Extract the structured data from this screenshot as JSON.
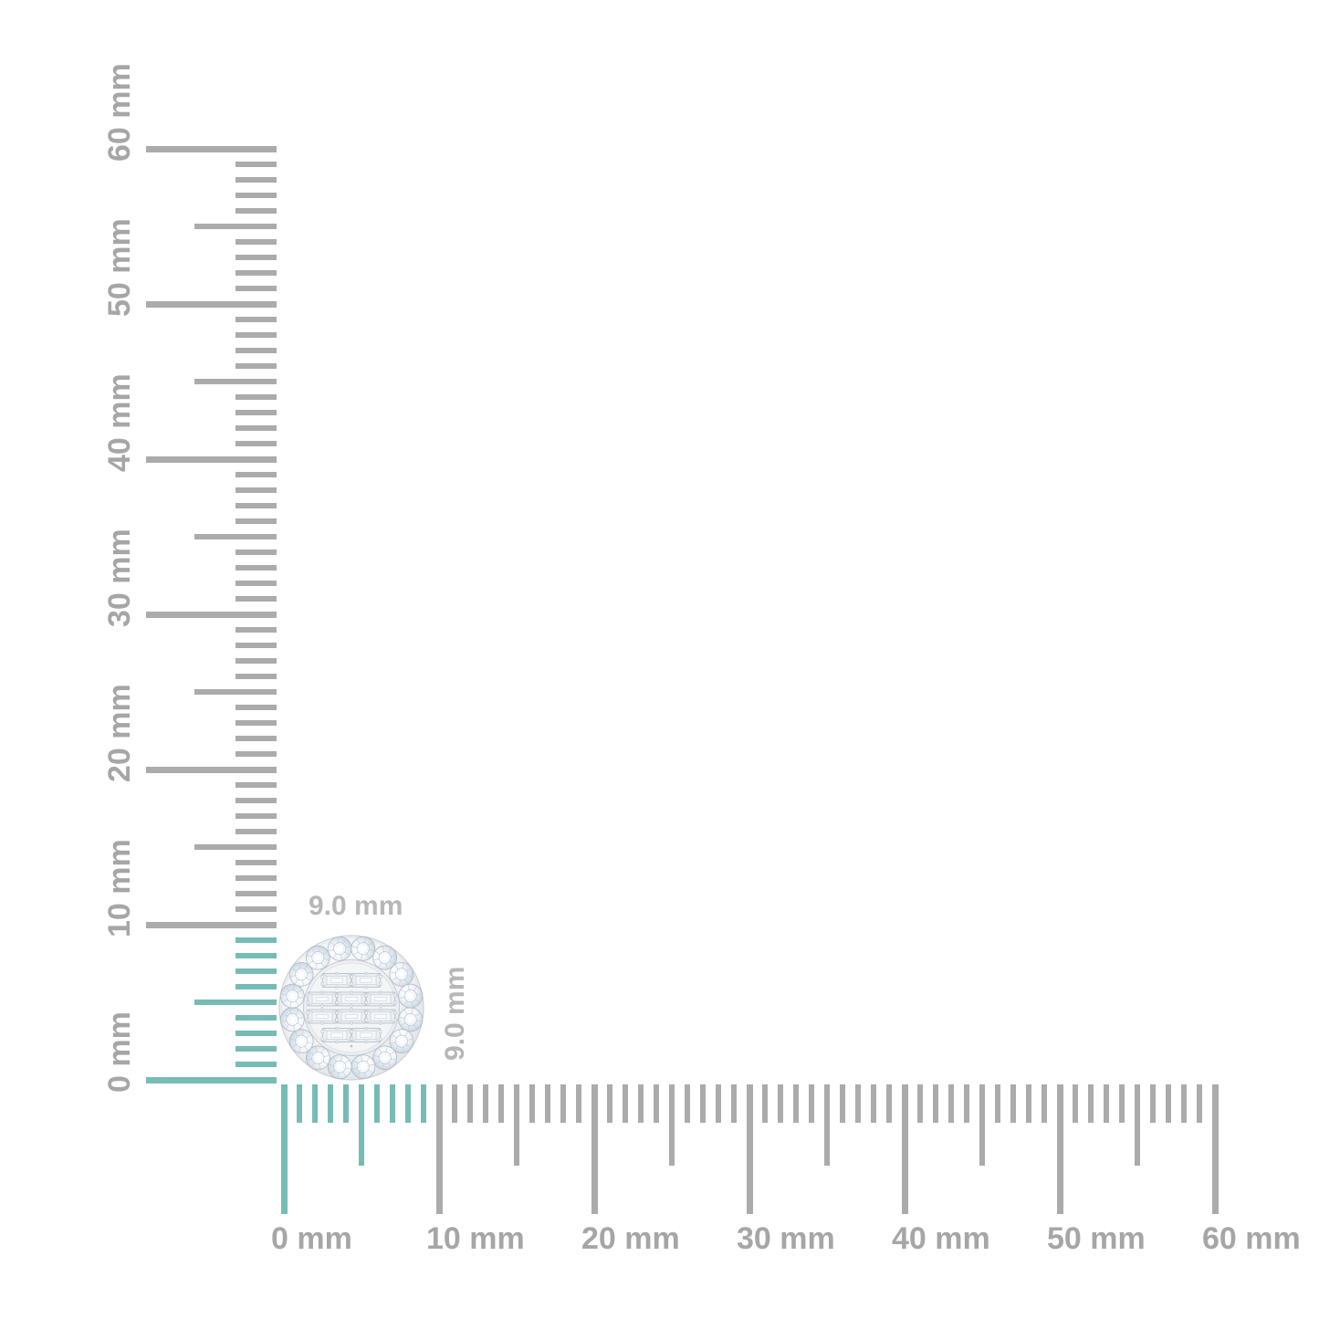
{
  "page": {
    "background_color": "#ffffff"
  },
  "product": {
    "description": "round halo cluster stud earring with baguette-cut center stones",
    "width_label": "9.0 mm",
    "height_label": "9.0 mm"
  },
  "rulers": {
    "unit": "mm",
    "max_mm": 60,
    "major_step_mm": 10,
    "highlight_span_mm": 9,
    "colors": {
      "tick_gray": "#ababab",
      "tick_highlight": "#76bcb5",
      "label_gray": "#a6a6a6",
      "dimension_label_gray": "#b7b7b7"
    },
    "vertical_labels": [
      "0 mm",
      "10 mm",
      "20 mm",
      "30 mm",
      "40 mm",
      "50 mm",
      "60 mm"
    ],
    "horizontal_labels": [
      "0 mm",
      "10 mm",
      "20 mm",
      "30 mm",
      "40 mm",
      "50 mm",
      "60 mm"
    ]
  }
}
